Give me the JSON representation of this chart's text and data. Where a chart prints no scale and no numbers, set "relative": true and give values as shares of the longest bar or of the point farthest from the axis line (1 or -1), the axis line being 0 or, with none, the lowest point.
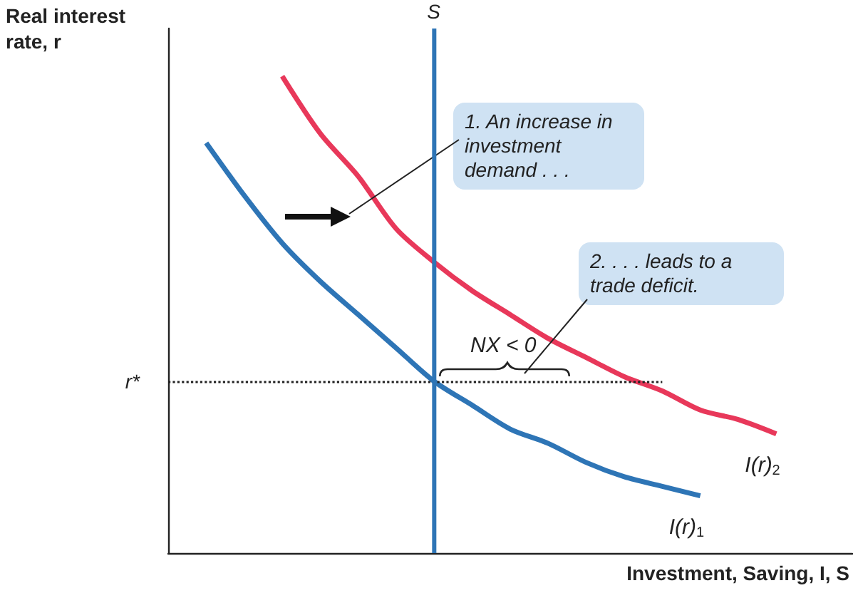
{
  "chart_data": {
    "type": "line",
    "relative": true,
    "xlabel": "Investment, Saving, I, S",
    "ylabel": "Real interest rate, r",
    "categories": [
      null,
      null,
      null,
      null,
      null,
      null,
      null,
      null,
      null,
      null,
      null,
      null,
      null,
      null,
      null,
      null,
      null,
      null,
      null
    ],
    "series": [
      {
        "name": "I(r)$_{1}$",
        "color": "#2e75b6",
        "values": [
          null,
          0.86,
          0.75,
          0.65,
          0.57,
          0.5,
          0.43,
          0.36,
          0.31,
          0.26,
          0.23,
          0.19,
          0.16,
          0.14,
          0.12,
          null,
          null,
          null,
          null
        ]
      },
      {
        "name": "I(r)$_{2}$",
        "color": "#e8385a",
        "values": [
          null,
          null,
          null,
          1.0,
          0.88,
          0.79,
          0.68,
          0.61,
          0.55,
          0.5,
          0.45,
          0.41,
          0.37,
          0.34,
          0.3,
          0.28,
          0.25,
          null,
          null
        ]
      }
    ],
    "ref_lines": [
      {
        "axis": "y",
        "value": 0.36,
        "label": "r*",
        "color": "#222222",
        "line_style": "dotted"
      }
    ],
    "annotations": [
      "1. An increase in investment demand . . .",
      "2. . . . leads to a trade deficit.",
      "NX < 0",
      "S"
    ],
    "legend": false,
    "grid": false
  }
}
